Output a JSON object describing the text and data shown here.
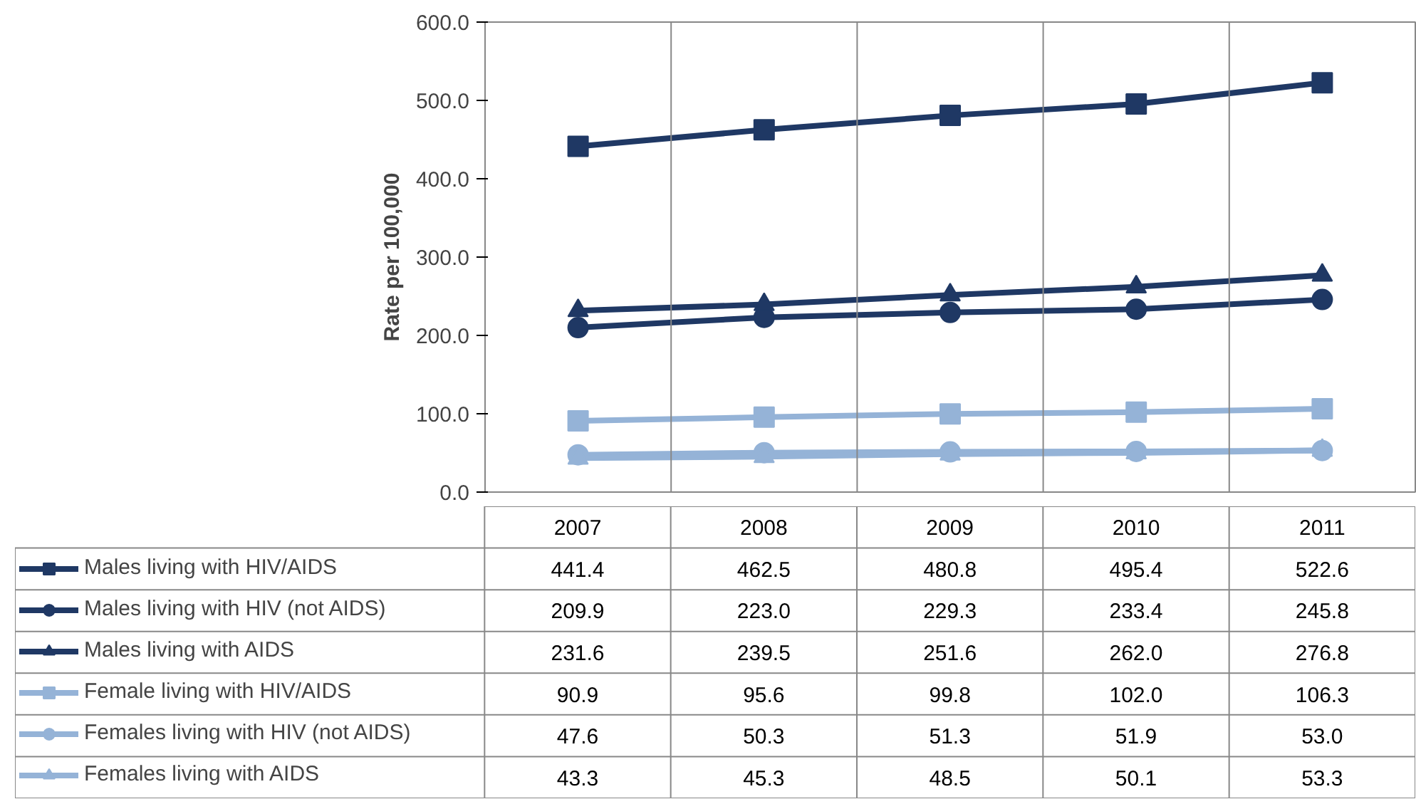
{
  "chart_data": {
    "type": "line",
    "ylabel": "Rate per 100,000",
    "categories": [
      "2007",
      "2008",
      "2009",
      "2010",
      "2011"
    ],
    "ylim": [
      0,
      600
    ],
    "yticks": [
      {
        "value": 0,
        "label": "0.0"
      },
      {
        "value": 100,
        "label": "100.0"
      },
      {
        "value": 200,
        "label": "200.0"
      },
      {
        "value": 300,
        "label": "300.0"
      },
      {
        "value": 400,
        "label": "400.0"
      },
      {
        "value": 500,
        "label": "500.0"
      },
      {
        "value": 600,
        "label": "600.0"
      }
    ],
    "grid": false,
    "legend": "bottom left",
    "line_style": "solid",
    "series": [
      {
        "name": "Males living with HIV/AIDS",
        "color": "#1f3864",
        "marker": "square",
        "values": [
          441.4,
          462.5,
          480.8,
          495.4,
          522.6
        ],
        "value_labels": [
          "441.4",
          "462.5",
          "480.8",
          "495.4",
          "522.6"
        ]
      },
      {
        "name": "Males living with HIV (not AIDS)",
        "color": "#1f3864",
        "marker": "circle",
        "values": [
          209.9,
          223.0,
          229.3,
          233.4,
          245.8
        ],
        "value_labels": [
          "209.9",
          "223.0",
          "229.3",
          "233.4",
          "245.8"
        ]
      },
      {
        "name": "Males living with AIDS",
        "color": "#1f3864",
        "marker": "triangle",
        "values": [
          231.6,
          239.5,
          251.6,
          262.0,
          276.8
        ],
        "value_labels": [
          "231.6",
          "239.5",
          "251.6",
          "262.0",
          "276.8"
        ]
      },
      {
        "name": "Female living with HIV/AIDS",
        "color": "#95b3d7",
        "marker": "square",
        "values": [
          90.9,
          95.6,
          99.8,
          102.0,
          106.3
        ],
        "value_labels": [
          "90.9",
          "95.6",
          "99.8",
          "102.0",
          "106.3"
        ]
      },
      {
        "name": "Females living with HIV (not AIDS)",
        "color": "#95b3d7",
        "marker": "circle",
        "values": [
          47.6,
          50.3,
          51.3,
          51.9,
          53.0
        ],
        "value_labels": [
          "47.6",
          "50.3",
          "51.3",
          "51.9",
          "53.0"
        ]
      },
      {
        "name": "Females living with AIDS",
        "color": "#95b3d7",
        "marker": "triangle",
        "values": [
          43.3,
          45.3,
          48.5,
          50.1,
          53.3
        ],
        "value_labels": [
          "43.3",
          "45.3",
          "48.5",
          "50.1",
          "53.3"
        ]
      }
    ]
  }
}
